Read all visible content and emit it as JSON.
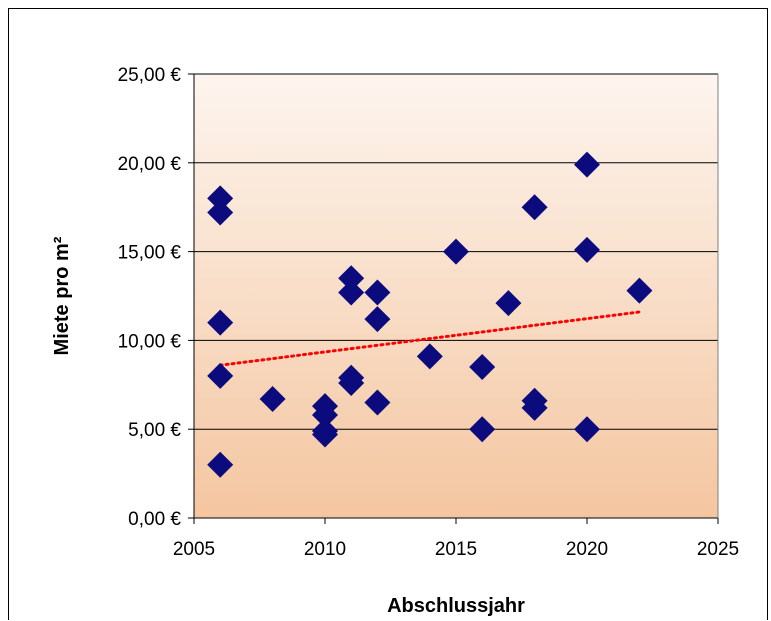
{
  "chart_data": {
    "type": "scatter",
    "title": "",
    "xlabel": "Abschlussjahr",
    "ylabel": "Miete pro m²",
    "xlim": [
      2005,
      2025
    ],
    "ylim": [
      0,
      25
    ],
    "x_ticks": [
      "2005",
      "2010",
      "2015",
      "2020",
      "2025"
    ],
    "y_ticks": [
      "0,00 €",
      "5,00 €",
      "10,00 €",
      "15,00 €",
      "20,00 €",
      "25,00 €"
    ],
    "grid": "horizontal",
    "legend": "none",
    "background_gradient": [
      "#fdf5ef",
      "#f4c6a0"
    ],
    "marker": "diamond",
    "marker_color": "#0b0b7d",
    "trendline_color": "#ff0000",
    "points": [
      {
        "x": 2006,
        "y": 18.0
      },
      {
        "x": 2006,
        "y": 17.2
      },
      {
        "x": 2006,
        "y": 11.0
      },
      {
        "x": 2006,
        "y": 8.0
      },
      {
        "x": 2006,
        "y": 3.0
      },
      {
        "x": 2008,
        "y": 6.7
      },
      {
        "x": 2010,
        "y": 6.3
      },
      {
        "x": 2010,
        "y": 5.8
      },
      {
        "x": 2010,
        "y": 4.9
      },
      {
        "x": 2010,
        "y": 4.7
      },
      {
        "x": 2011,
        "y": 13.5
      },
      {
        "x": 2011,
        "y": 12.7
      },
      {
        "x": 2011,
        "y": 7.9
      },
      {
        "x": 2011,
        "y": 7.6
      },
      {
        "x": 2012,
        "y": 12.7
      },
      {
        "x": 2012,
        "y": 11.2
      },
      {
        "x": 2012,
        "y": 6.5
      },
      {
        "x": 2014,
        "y": 9.1
      },
      {
        "x": 2015,
        "y": 15.0
      },
      {
        "x": 2016,
        "y": 8.5
      },
      {
        "x": 2016,
        "y": 5.0
      },
      {
        "x": 2017,
        "y": 12.1
      },
      {
        "x": 2018,
        "y": 17.5
      },
      {
        "x": 2018,
        "y": 6.6
      },
      {
        "x": 2018,
        "y": 6.2
      },
      {
        "x": 2020,
        "y": 19.9
      },
      {
        "x": 2020,
        "y": 15.1
      },
      {
        "x": 2020,
        "y": 5.0
      },
      {
        "x": 2022,
        "y": 12.8
      }
    ],
    "trendline": {
      "x": [
        2006,
        2022
      ],
      "y": [
        8.6,
        11.6
      ]
    }
  }
}
